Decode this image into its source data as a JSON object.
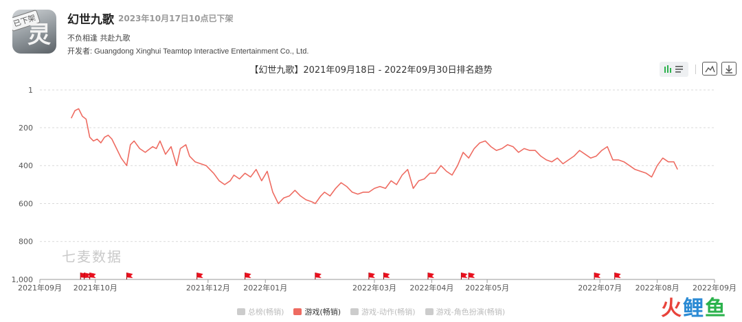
{
  "app": {
    "name": "幻世九歌",
    "status": "2023年10月17日10点已下架",
    "icon_stamp": "已下架",
    "icon_glyph": "灵",
    "slogan": "不负相逢 共赴九歌",
    "developer": "开发者: Guangdong Xinghui Teamtop Interactive Entertainment Co., Ltd."
  },
  "toolbar": {
    "toggle_icon": "bar-list-toggle-icon",
    "image_icon": "image-icon",
    "download_icon": "download-icon"
  },
  "watermark": "七麦数据",
  "brand": {
    "a": "火",
    "b": "鲤",
    "c": "鱼"
  },
  "colors": {
    "line": "#ee6b61",
    "grid": "#d9d9d9",
    "flag": "#e8101e"
  },
  "chart_data": {
    "type": "line",
    "title": "【幻世九歌】2021年09月18日 - 2022年09月30日排名趋势",
    "y_axis": {
      "ticks": [
        "1",
        "200",
        "400",
        "600",
        "800",
        "1,000"
      ],
      "tick_values": [
        1,
        200,
        400,
        600,
        800,
        1000
      ],
      "range": [
        1,
        1000
      ],
      "inverted": true
    },
    "x_axis": {
      "ticks": [
        "2021年09月",
        "2021年10月",
        "2021年12月",
        "2022年01月",
        "2022年03月",
        "2022年04月",
        "2022年05月",
        "2022年07月",
        "2022年08月",
        "2022年09月"
      ],
      "tick_dates": [
        "2021-09-01",
        "2021-10-01",
        "2021-12-01",
        "2022-01-01",
        "2022-03-01",
        "2022-04-01",
        "2022-05-01",
        "2022-07-01",
        "2022-08-01",
        "2022-09-01"
      ],
      "range": [
        "2021-09-01",
        "2022-09-01"
      ]
    },
    "grid": true,
    "legend": [
      "总榜(畅销)",
      "游戏(畅销)",
      "游戏-动作(畅销)",
      "游戏-角色扮演(畅销)"
    ],
    "legend_active": [
      false,
      true,
      false,
      false
    ],
    "legend_position": "bottom",
    "series": [
      {
        "name": "游戏(畅销)",
        "x": [
          "2021-09-18",
          "2021-09-20",
          "2021-09-22",
          "2021-09-24",
          "2021-09-26",
          "2021-09-28",
          "2021-09-30",
          "2021-10-02",
          "2021-10-04",
          "2021-10-06",
          "2021-10-08",
          "2021-10-10",
          "2021-10-12",
          "2021-10-15",
          "2021-10-18",
          "2021-10-20",
          "2021-10-22",
          "2021-10-25",
          "2021-10-28",
          "2021-11-01",
          "2021-11-03",
          "2021-11-05",
          "2021-11-08",
          "2021-11-11",
          "2021-11-14",
          "2021-11-16",
          "2021-11-19",
          "2021-11-21",
          "2021-11-24",
          "2021-11-27",
          "2021-11-30",
          "2021-12-02",
          "2021-12-04",
          "2021-12-07",
          "2021-12-10",
          "2021-12-13",
          "2021-12-15",
          "2021-12-18",
          "2021-12-21",
          "2021-12-24",
          "2021-12-27",
          "2021-12-30",
          "2022-01-02",
          "2022-01-05",
          "2022-01-08",
          "2022-01-11",
          "2022-01-14",
          "2022-01-17",
          "2022-01-20",
          "2022-01-23",
          "2022-01-26",
          "2022-01-28",
          "2022-01-31",
          "2022-02-02",
          "2022-02-05",
          "2022-02-08",
          "2022-02-11",
          "2022-02-14",
          "2022-02-17",
          "2022-02-20",
          "2022-02-23",
          "2022-02-26",
          "2022-03-01",
          "2022-03-04",
          "2022-03-07",
          "2022-03-10",
          "2022-03-13",
          "2022-03-16",
          "2022-03-19",
          "2022-03-22",
          "2022-03-25",
          "2022-03-28",
          "2022-03-31",
          "2022-04-03",
          "2022-04-06",
          "2022-04-09",
          "2022-04-12",
          "2022-04-15",
          "2022-04-18",
          "2022-04-21",
          "2022-04-24",
          "2022-04-27",
          "2022-04-30",
          "2022-05-03",
          "2022-05-06",
          "2022-05-09",
          "2022-05-12",
          "2022-05-15",
          "2022-05-18",
          "2022-05-21",
          "2022-05-24",
          "2022-05-27",
          "2022-05-30",
          "2022-06-02",
          "2022-06-05",
          "2022-06-08",
          "2022-06-11",
          "2022-06-14",
          "2022-06-17",
          "2022-06-20",
          "2022-06-23",
          "2022-06-26",
          "2022-06-29",
          "2022-07-02",
          "2022-07-05",
          "2022-07-08",
          "2022-07-11",
          "2022-07-14",
          "2022-07-17",
          "2022-07-20",
          "2022-07-23",
          "2022-07-26",
          "2022-07-29",
          "2022-08-01",
          "2022-08-04",
          "2022-08-07",
          "2022-08-10",
          "2022-08-12"
        ],
        "y": [
          150,
          110,
          100,
          140,
          155,
          250,
          270,
          260,
          280,
          250,
          240,
          260,
          300,
          360,
          400,
          290,
          270,
          310,
          330,
          300,
          310,
          270,
          340,
          300,
          400,
          310,
          290,
          350,
          380,
          390,
          400,
          420,
          440,
          480,
          500,
          480,
          450,
          470,
          440,
          460,
          420,
          480,
          430,
          540,
          600,
          570,
          560,
          530,
          560,
          580,
          590,
          600,
          560,
          540,
          560,
          520,
          490,
          510,
          540,
          550,
          540,
          540,
          520,
          510,
          520,
          480,
          500,
          450,
          420,
          520,
          480,
          470,
          440,
          440,
          400,
          430,
          450,
          400,
          330,
          360,
          310,
          280,
          270,
          300,
          320,
          310,
          290,
          300,
          330,
          310,
          320,
          320,
          350,
          370,
          380,
          360,
          390,
          370,
          350,
          320,
          340,
          360,
          350,
          320,
          300,
          370,
          370,
          380,
          400,
          420,
          430,
          440,
          460,
          400,
          360,
          380,
          380,
          420
        ]
      }
    ],
    "flags_dates": [
      "2021-09-23",
      "2021-09-25",
      "2021-09-28",
      "2021-10-18",
      "2021-11-25",
      "2021-12-21",
      "2022-01-28",
      "2022-02-26",
      "2022-03-06",
      "2022-03-30",
      "2022-04-17",
      "2022-04-21",
      "2022-06-28",
      "2022-07-09"
    ]
  },
  "legend_labels": {
    "l0": "总榜(畅销)",
    "l1": "游戏(畅销)",
    "l2": "游戏-动作(畅销)",
    "l3": "游戏-角色扮演(畅销)"
  }
}
